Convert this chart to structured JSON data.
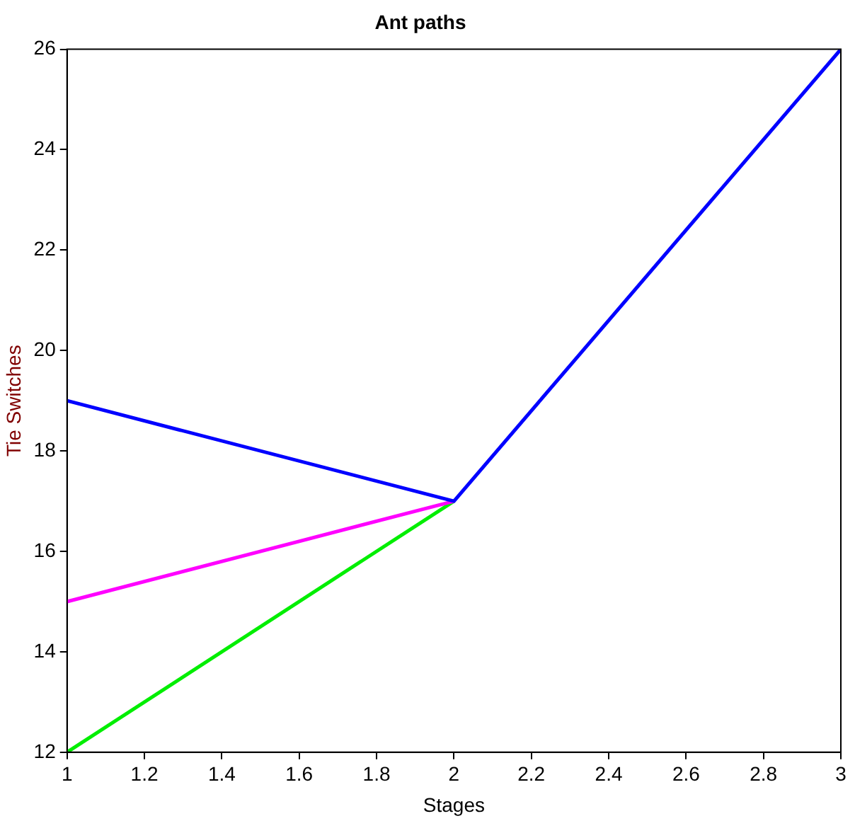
{
  "chart_data": {
    "type": "line",
    "title": "Ant paths",
    "xlabel": "Stages",
    "ylabel": "Tie Switches",
    "x": [
      1,
      2,
      3
    ],
    "series": [
      {
        "color": "#00ee00",
        "values": [
          12,
          17,
          null
        ]
      },
      {
        "color": "#ff00ff",
        "values": [
          15,
          17,
          null
        ]
      },
      {
        "color": "#0000ff",
        "values": [
          19,
          17,
          26
        ]
      }
    ],
    "xlim": [
      1,
      3
    ],
    "xticks": [
      1,
      1.2,
      1.4,
      1.6,
      1.8,
      2,
      2.2,
      2.4,
      2.6,
      2.8,
      3
    ],
    "ylim": [
      12,
      26
    ],
    "yticks": [
      12,
      14,
      16,
      18,
      20,
      22,
      24,
      26
    ],
    "grid": false,
    "legend": false,
    "marker": "none",
    "line_style": "solid"
  }
}
